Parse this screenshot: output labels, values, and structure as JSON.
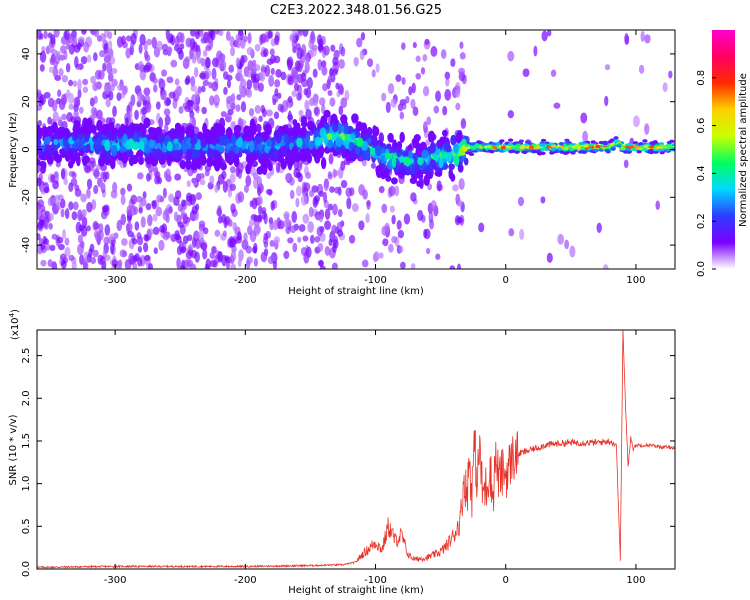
{
  "figure": {
    "title": "C2E3.2022.348.01.56.G25"
  },
  "chart_data": [
    {
      "type": "heatmap",
      "title": "C2E3.2022.348.01.56.G25",
      "xlabel": "Height of straight line (km)",
      "ylabel": "Frequency (Hz)",
      "xlim": [
        -360,
        130
      ],
      "ylim": [
        -50,
        50
      ],
      "xticks": [
        -300,
        -200,
        -100,
        0,
        100
      ],
      "xtick_labels": [
        "-300",
        "-200",
        "-100",
        "0",
        "100"
      ],
      "yticks": [
        -40,
        -20,
        0,
        20,
        40
      ],
      "ytick_labels": [
        "-40",
        "-20",
        "0",
        "20",
        "40"
      ],
      "colorbar": {
        "label": "Normalized spectral amplitude",
        "range": [
          0.0,
          1.0
        ],
        "ticks": [
          0.0,
          0.2,
          0.4,
          0.6,
          0.8
        ],
        "tick_labels": [
          "0.0",
          "0.2",
          "0.4",
          "0.6",
          "0.8"
        ],
        "colormap": [
          "#ffffff",
          "#7a00ff",
          "#2f3cff",
          "#00d8ff",
          "#00ff60",
          "#c8ff00",
          "#ffd000",
          "#ff2a00",
          "#ff0060",
          "#ff00cc"
        ]
      },
      "ridge": {
        "x": [
          -360,
          -330,
          -300,
          -285,
          -270,
          -250,
          -230,
          -210,
          -190,
          -170,
          -155,
          -145,
          -135,
          -125,
          -115,
          -105,
          -95,
          -85,
          -75,
          -65,
          -55,
          -45,
          -38,
          -30,
          -20,
          0,
          20,
          50,
          80,
          85,
          90,
          100,
          130
        ],
        "y": [
          2,
          3,
          2,
          3,
          1,
          2,
          1,
          2,
          1,
          2,
          3,
          4,
          6,
          5,
          3,
          1,
          -3,
          -4,
          -5,
          -5,
          -3,
          -3,
          -2,
          1,
          1,
          1,
          1,
          1,
          1,
          3,
          1,
          1,
          1
        ],
        "amplitude": [
          0.35,
          0.35,
          0.4,
          0.45,
          0.35,
          0.4,
          0.35,
          0.4,
          0.35,
          0.4,
          0.35,
          0.45,
          0.6,
          0.55,
          0.5,
          0.45,
          0.45,
          0.5,
          0.45,
          0.45,
          0.5,
          0.55,
          0.6,
          0.7,
          0.85,
          0.85,
          0.85,
          0.9,
          0.9,
          0.75,
          0.8,
          0.85,
          0.85
        ]
      }
    },
    {
      "type": "line",
      "xlabel": "Height of straight line (km)",
      "ylabel": "SNR (10 * v/v)",
      "scale_label": "(x10",
      "scale_exp": "4",
      "scale_close": ")",
      "xlim": [
        -360,
        130
      ],
      "ylim": [
        0,
        2.8
      ],
      "xticks": [
        -300,
        -200,
        -100,
        0,
        100
      ],
      "xtick_labels": [
        "-300",
        "-200",
        "-100",
        "0",
        "100"
      ],
      "yticks": [
        0.0,
        0.5,
        1.0,
        1.5,
        2.0,
        2.5
      ],
      "ytick_labels": [
        "0.0",
        "0.5",
        "1.0",
        "1.5",
        "2.0",
        "2.5"
      ],
      "line_color": "#e8332a",
      "series": [
        {
          "x": [
            -360,
            -300,
            -250,
            -200,
            -150,
            -125,
            -115,
            -110,
            -100,
            -95,
            -90,
            -85,
            -80,
            -75,
            -70,
            -60,
            -50,
            -45,
            -40,
            -35,
            -32,
            -30,
            -28,
            -26,
            -24,
            -22,
            -20,
            -18,
            -15,
            -12,
            -10,
            -8,
            -5,
            -2,
            0,
            5,
            10,
            20,
            30,
            40,
            50,
            60,
            70,
            80,
            85,
            88,
            90,
            92,
            94,
            96,
            98,
            100,
            110,
            120,
            130
          ],
          "y": [
            0.02,
            0.03,
            0.03,
            0.03,
            0.04,
            0.05,
            0.08,
            0.15,
            0.28,
            0.2,
            0.45,
            0.3,
            0.35,
            0.15,
            0.1,
            0.12,
            0.18,
            0.25,
            0.35,
            0.5,
            0.95,
            0.8,
            1.3,
            0.9,
            1.5,
            1.0,
            1.45,
            0.9,
            0.95,
            1.2,
            0.8,
            1.3,
            1.05,
            1.15,
            1.1,
            1.3,
            1.35,
            1.4,
            1.45,
            1.47,
            1.48,
            1.48,
            1.48,
            1.5,
            1.45,
            0.1,
            2.8,
            1.9,
            1.2,
            1.55,
            1.4,
            1.45,
            1.45,
            1.43,
            1.42
          ]
        }
      ]
    }
  ]
}
